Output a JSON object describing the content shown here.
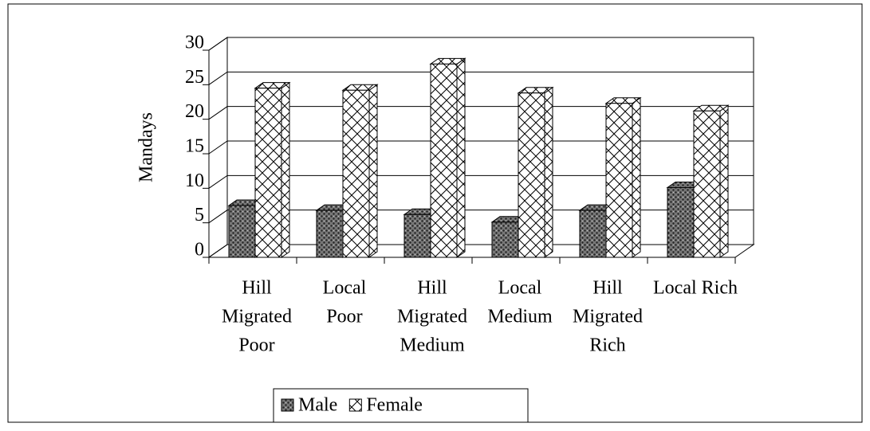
{
  "chart_data": {
    "type": "bar3d",
    "y_label": "Mandays",
    "categories": [
      [
        "Hill",
        "Migrated",
        "Poor"
      ],
      [
        "Local",
        "Poor"
      ],
      [
        "Hill",
        "Migrated",
        "Medium"
      ],
      [
        "Local",
        "Medium"
      ],
      [
        "Hill",
        "Migrated",
        "Rich"
      ],
      [
        "Local Rich"
      ]
    ],
    "series": [
      {
        "name": "Male",
        "color": "#555555",
        "values": [
          7.5,
          6.8,
          6.2,
          5.1,
          6.8,
          10.1
        ]
      },
      {
        "name": "Female",
        "color": "#ffffff",
        "values": [
          24.5,
          24.2,
          28,
          23.8,
          22.3,
          21.2
        ]
      }
    ],
    "ylim": [
      0,
      30
    ],
    "yticks": [
      0,
      5,
      10,
      15,
      20,
      25,
      30
    ],
    "grid": true,
    "legend": "bottom"
  }
}
